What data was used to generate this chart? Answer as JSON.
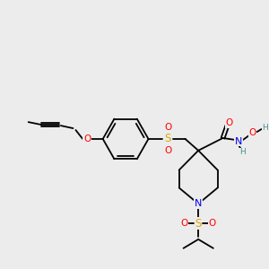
{
  "bg_color": "#ececec",
  "atom_colors": {
    "C": "#000000",
    "N": "#0000ee",
    "O": "#ff0000",
    "S": "#ddaa00",
    "H": "#4a9090"
  },
  "bond_color": "#000000"
}
